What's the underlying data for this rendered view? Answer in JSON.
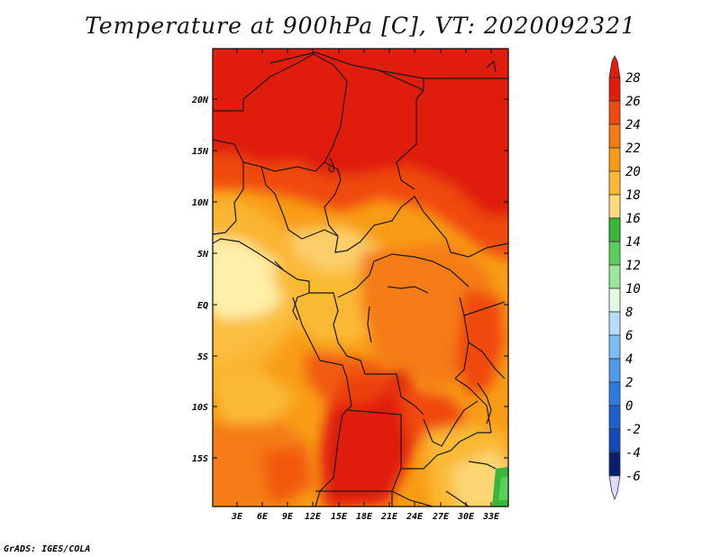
{
  "title": "Temperature at 900hPa [C], VT: 2020092321",
  "credit": "GrADS: IGES/COLA",
  "map": {
    "lat_labels": [
      "20N",
      "15N",
      "10N",
      "5N",
      "EQ",
      "5S",
      "10S",
      "15S"
    ],
    "lon_labels": [
      "3E",
      "6E",
      "9E",
      "12E",
      "15E",
      "18E",
      "21E",
      "24E",
      "27E",
      "30E",
      "33E"
    ]
  },
  "colorbar": {
    "labels": [
      "28",
      "26",
      "24",
      "22",
      "20",
      "18",
      "16",
      "14",
      "12",
      "10",
      "8",
      "6",
      "4",
      "2",
      "0",
      "-2",
      "-4",
      "-6"
    ],
    "colors": {
      "c28p": "#e01d0c",
      "c26": "#f04a10",
      "c24": "#f57b12",
      "c22": "#f89c16",
      "c20": "#fab935",
      "c18": "#fcdb80",
      "c16": "#fef4b5",
      "c14": "#39b739",
      "c12": "#5bcf5b",
      "c10": "#9ae69a",
      "c8": "#e6f9e6",
      "c6": "#b7dcf9",
      "c4": "#7dbdf3",
      "c2": "#4f99ea",
      "c0": "#2f7ae0",
      "cm2": "#1e5fd0",
      "cm4": "#1549b8",
      "cm6": "#0e3190",
      "cm6b": "#0a1f6e",
      "under": "#e2dafc"
    }
  }
}
